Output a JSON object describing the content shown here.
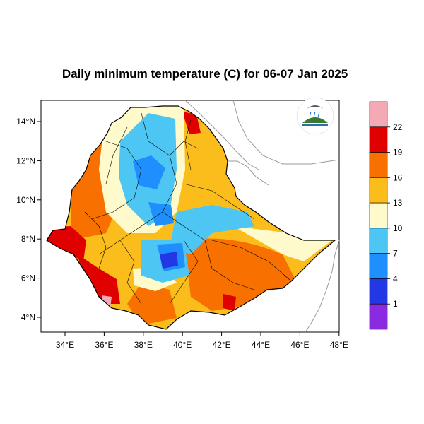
{
  "title": "Daily minimum temperature (C) for 06-07 Jan 2025",
  "lon_ticks": [
    "34°E",
    "36°E",
    "38°E",
    "40°E",
    "42°E",
    "44°E",
    "46°E",
    "48°E"
  ],
  "lat_ticks": [
    "14°N",
    "12°N",
    "10°N",
    "8°N",
    "6°N",
    "4°N"
  ],
  "colorbar": {
    "colors": [
      "#f4aab4",
      "#e00000",
      "#f87000",
      "#fbbd1c",
      "#fffacb",
      "#4ec6f4",
      "#1f8fff",
      "#2238e4",
      "#8a2be2"
    ],
    "labels": [
      "22",
      "19",
      "16",
      "13",
      "10",
      "7",
      "4",
      "1"
    ]
  },
  "colors": {
    "ocean_outline": "#9a9a9a",
    "boundary": "#000000"
  },
  "logo_icon": "ethiopian-meteorology-institute-logo"
}
